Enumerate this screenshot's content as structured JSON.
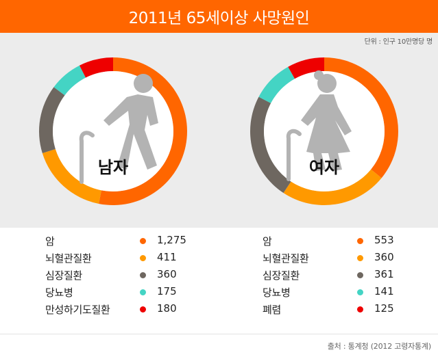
{
  "title": "2011년 65세이상 사망원인",
  "unit_note": "단위 : 인구 10만명당 명",
  "source": "출처 : 통계청 (2012 고령자통계)",
  "colors": {
    "title_bg": "#ff6600",
    "panel_bg": "#ececec",
    "cancer": "#ff6600",
    "cerebrovascular": "#ff9900",
    "heart": "#6e6760",
    "diabetes": "#44d4c4",
    "respiratory": "#ee0000",
    "figure": "#b3b3b3"
  },
  "icons": [
    "elderly-man-cane-icon",
    "elderly-woman-cane-icon"
  ],
  "chart_data": [
    {
      "type": "pie",
      "style": "donut",
      "title": "남자",
      "categories": [
        "암",
        "뇌혈관질환",
        "심장질환",
        "당뇨병",
        "만성하기도질환"
      ],
      "values": [
        1275,
        411,
        360,
        175,
        180
      ],
      "value_labels": [
        "1,275",
        "411",
        "360",
        "175",
        "180"
      ],
      "colors": [
        "#ff6600",
        "#ff9900",
        "#6e6760",
        "#44d4c4",
        "#ee0000"
      ]
    },
    {
      "type": "pie",
      "style": "donut",
      "title": "여자",
      "categories": [
        "암",
        "뇌혈관질환",
        "심장질환",
        "당뇨병",
        "폐렴"
      ],
      "values": [
        553,
        360,
        361,
        141,
        125
      ],
      "value_labels": [
        "553",
        "360",
        "361",
        "141",
        "125"
      ],
      "colors": [
        "#ff6600",
        "#ff9900",
        "#6e6760",
        "#44d4c4",
        "#ee0000"
      ]
    }
  ]
}
